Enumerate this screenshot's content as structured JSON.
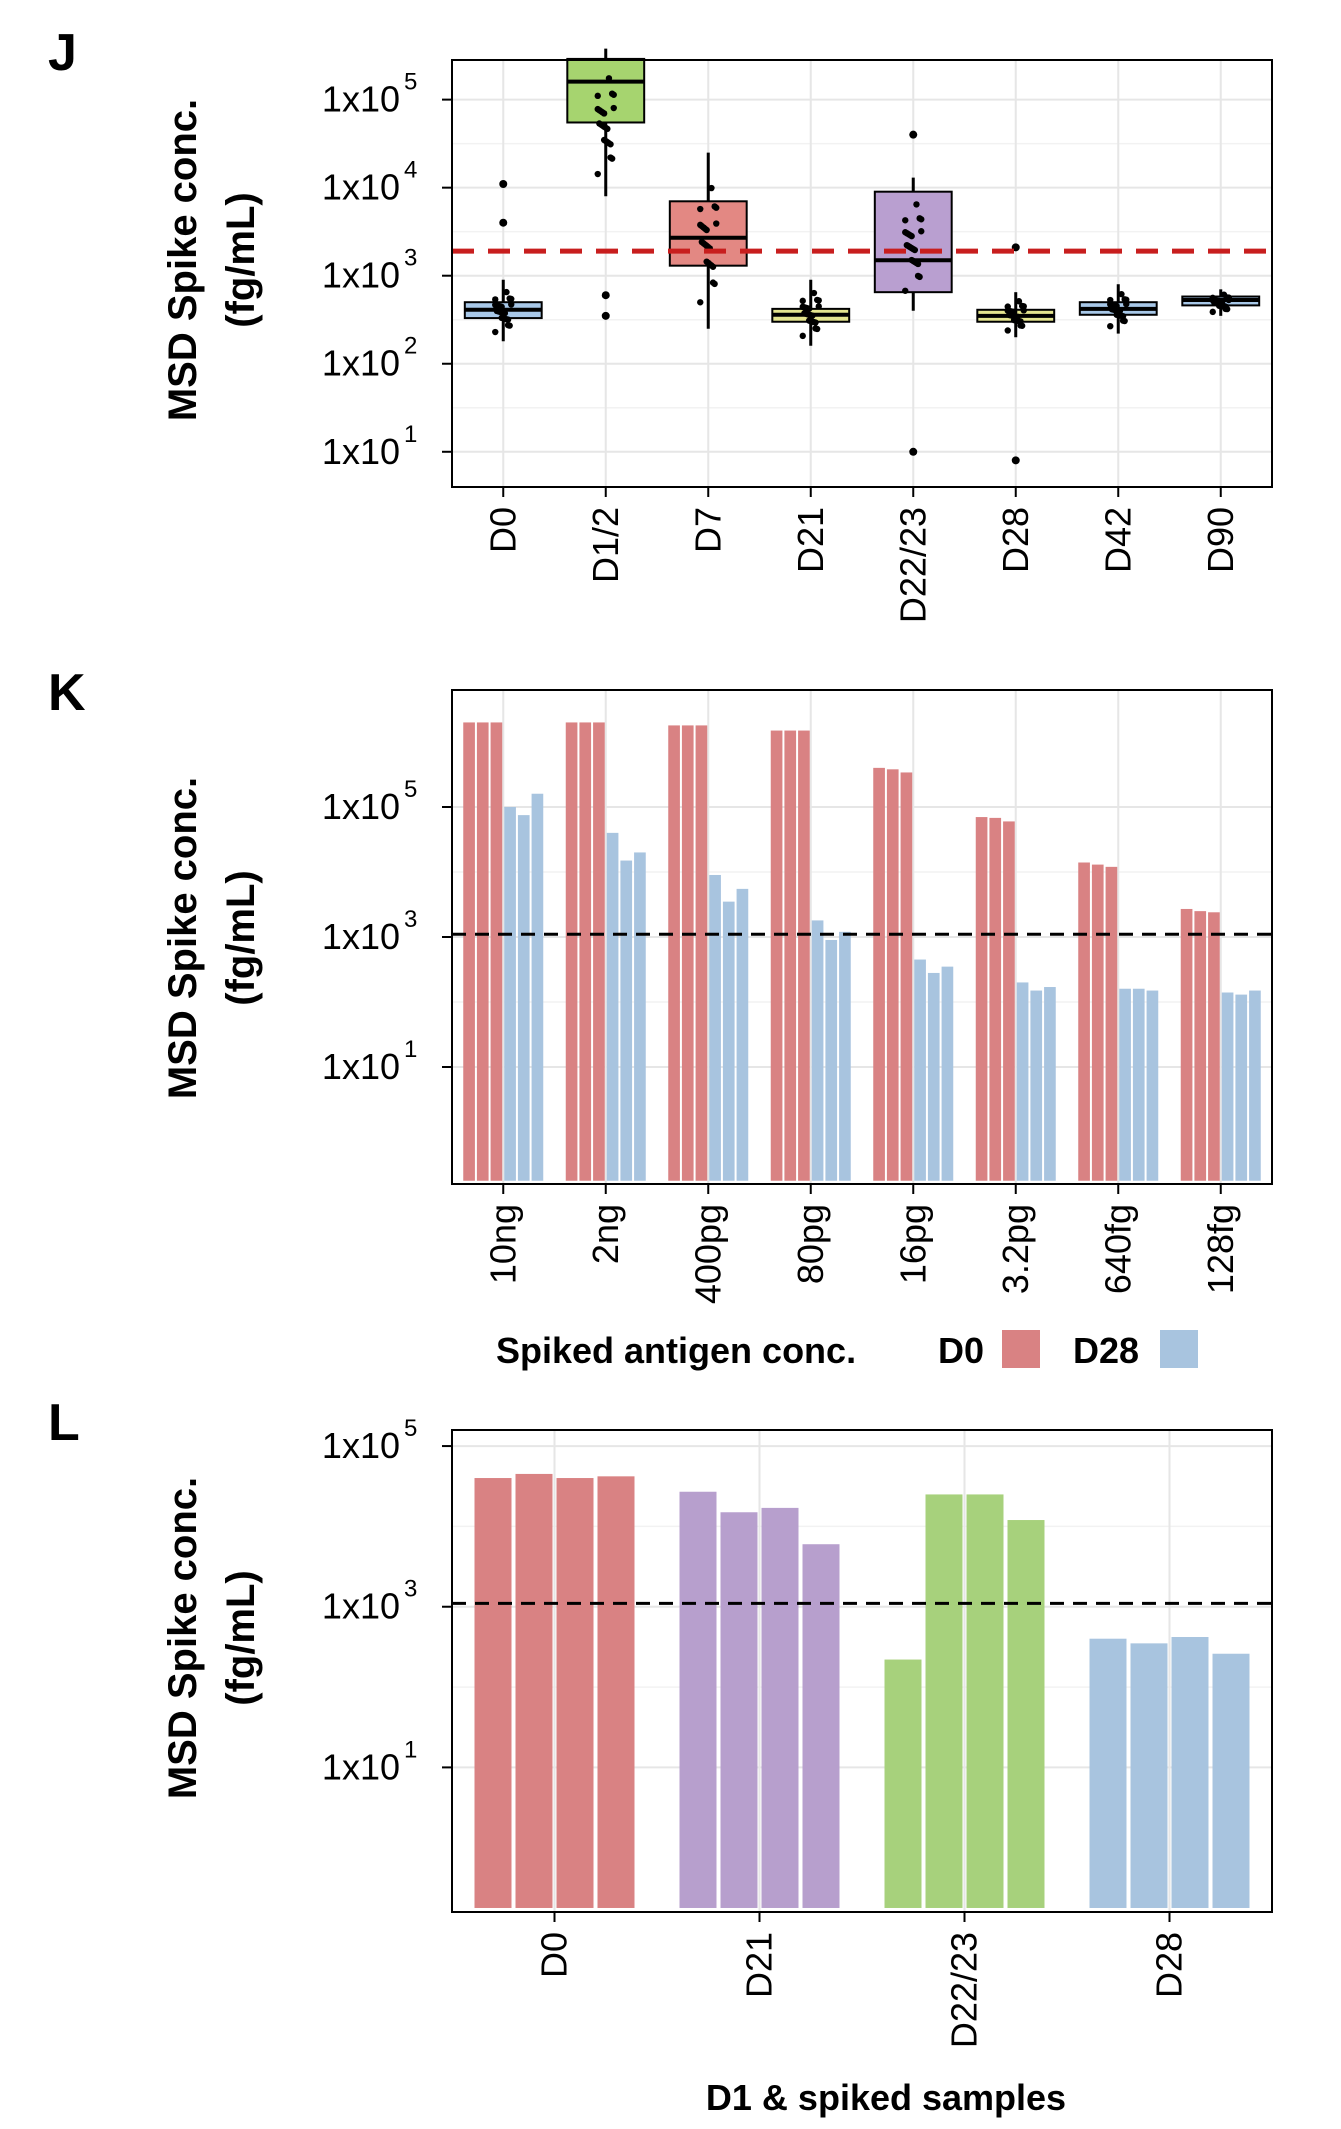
{
  "colors": {
    "red_bar": "#d98283",
    "blue_bar": "#a8c4df",
    "purple_bar": "#b79fcd",
    "green_bar": "#a7d17c",
    "threshold_red": "#c81e1e",
    "threshold_black": "#000000",
    "box_blue": "#a8c8e8",
    "box_green": "#a6d46f",
    "box_red": "#e38883",
    "box_yellow": "#e4e58f",
    "box_purple": "#b99fd0",
    "box_dark": "#1f3b57"
  },
  "chart_data": [
    {
      "panel": "J",
      "type": "box",
      "ylabel_line1": "MSD Spike conc.",
      "ylabel_line2": "(fg/mL)",
      "xlabel": "",
      "yscale": "log10",
      "ylim_log10": [
        0.6,
        5.45
      ],
      "yticks": [
        {
          "log": 1,
          "base": "1x10",
          "exp": "1"
        },
        {
          "log": 2,
          "base": "1x10",
          "exp": "2"
        },
        {
          "log": 3,
          "base": "1x10",
          "exp": "3"
        },
        {
          "log": 4,
          "base": "1x10",
          "exp": "4"
        },
        {
          "log": 5,
          "base": "1x10",
          "exp": "5"
        }
      ],
      "threshold": {
        "value": 1900,
        "style": "dashed",
        "color": "#c81e1e"
      },
      "grid": true,
      "categories": [
        "D0",
        "D1/2",
        "D7",
        "D21",
        "D22/23",
        "D28",
        "D42",
        "D90"
      ],
      "boxes": [
        {
          "category": "D0",
          "q1": 330,
          "median": 410,
          "q3": 500,
          "whisker_low": 180,
          "whisker_high": 900,
          "outliers": [
            4000,
            11000
          ],
          "color": "#a8c8e8"
        },
        {
          "category": "D1/2",
          "q1": 55000,
          "median": 160000,
          "q3": 290000,
          "whisker_low": 8000,
          "whisker_high": 380000,
          "outliers": [
            350,
            600
          ],
          "color": "#a6d46f"
        },
        {
          "category": "D7",
          "q1": 1300,
          "median": 2700,
          "q3": 7000,
          "whisker_low": 250,
          "whisker_high": 25000,
          "outliers": [],
          "color": "#e38883"
        },
        {
          "category": "D22/23",
          "q1": 650,
          "median": 1500,
          "q3": 9000,
          "whisker_low": 400,
          "whisker_high": 13000,
          "outliers": [
            10,
            40000
          ],
          "color": "#b99fd0"
        },
        {
          "category": "D21",
          "q1": 300,
          "median": 360,
          "q3": 420,
          "whisker_low": 160,
          "whisker_high": 900,
          "outliers": [],
          "color": "#e4e58f"
        },
        {
          "category": "D28",
          "q1": 300,
          "median": 350,
          "q3": 410,
          "whisker_low": 200,
          "whisker_high": 650,
          "outliers": [
            8,
            2100
          ],
          "color": "#e4e58f"
        },
        {
          "category": "D42",
          "q1": 360,
          "median": 420,
          "q3": 500,
          "whisker_low": 220,
          "whisker_high": 800,
          "outliers": [],
          "color": "#a8c8e8"
        },
        {
          "category": "D90",
          "q1": 460,
          "median": 530,
          "q3": 580,
          "whisker_low": 350,
          "whisker_high": 700,
          "outliers": [],
          "color": "#a8c8e8"
        }
      ]
    },
    {
      "panel": "K",
      "type": "bar",
      "ylabel_line1": "MSD Spike conc.",
      "ylabel_line2": "(fg/mL)",
      "xlabel": "Spiked antigen conc.",
      "yscale": "log10",
      "ylim_log10": [
        -0.8,
        6.8
      ],
      "bar_base_log10": 0,
      "yticks": [
        {
          "log": 1,
          "base": "1x10",
          "exp": "1"
        },
        {
          "log": 3,
          "base": "1x10",
          "exp": "3"
        },
        {
          "log": 5,
          "base": "1x10",
          "exp": "5"
        }
      ],
      "threshold": {
        "value": 1100,
        "style": "dashed",
        "color": "#000000"
      },
      "grid": true,
      "legend": {
        "position": "bottom-right",
        "entries": [
          {
            "label": "D0",
            "color": "#d98283"
          },
          {
            "label": "D28",
            "color": "#a8c4df"
          }
        ]
      },
      "categories": [
        "10ng",
        "2ng",
        "400pg",
        "80pg",
        "16pg",
        "3.2pg",
        "640fg",
        "128fg"
      ],
      "series": [
        {
          "name": "D0",
          "color": "#d98283",
          "values": [
            [
              2000000,
              2000000,
              2000000
            ],
            [
              2000000,
              2000000,
              2000000
            ],
            [
              1800000,
              1800000,
              1800000
            ],
            [
              1500000,
              1500000,
              1500000
            ],
            [
              400000,
              380000,
              340000
            ],
            [
              70000,
              68000,
              60000
            ],
            [
              14000,
              13000,
              12000
            ],
            [
              2700,
              2500,
              2400
            ]
          ]
        },
        {
          "name": "D28",
          "color": "#a8c4df",
          "values": [
            [
              100000,
              75000,
              160000
            ],
            [
              40000,
              15000,
              20000
            ],
            [
              9000,
              3500,
              5500
            ],
            [
              1800,
              900,
              1200
            ],
            [
              450,
              280,
              350
            ],
            [
              200,
              150,
              170
            ],
            [
              160,
              160,
              150
            ],
            [
              140,
              130,
              150
            ]
          ]
        }
      ]
    },
    {
      "panel": "L",
      "type": "bar",
      "ylabel_line1": "MSD Spike conc.",
      "ylabel_line2": "(fg/mL)",
      "xlabel": "D1 & spiked samples",
      "yscale": "log10",
      "ylim_log10": [
        -0.8,
        5.2
      ],
      "bar_base_log10": 0,
      "yticks": [
        {
          "log": 1,
          "base": "1x10",
          "exp": "1"
        },
        {
          "log": 3,
          "base": "1x10",
          "exp": "3"
        },
        {
          "log": 5,
          "base": "1x10",
          "exp": "5"
        }
      ],
      "threshold": {
        "value": 1100,
        "style": "dashed",
        "color": "#000000"
      },
      "grid": true,
      "categories": [
        "D0",
        "D21",
        "D22/23",
        "D28"
      ],
      "groups": [
        {
          "category": "D0",
          "color": "#d98283",
          "values": [
            40000,
            45000,
            40000,
            42000
          ]
        },
        {
          "category": "D21",
          "color": "#b79fcd",
          "values": [
            27000,
            15000,
            17000,
            6000
          ]
        },
        {
          "category": "D22/23",
          "color": "#a7d17c",
          "values": [
            220,
            25000,
            25000,
            12000
          ]
        },
        {
          "category": "D28",
          "color": "#a8c4df",
          "values": [
            400,
            350,
            420,
            260
          ]
        }
      ]
    }
  ]
}
